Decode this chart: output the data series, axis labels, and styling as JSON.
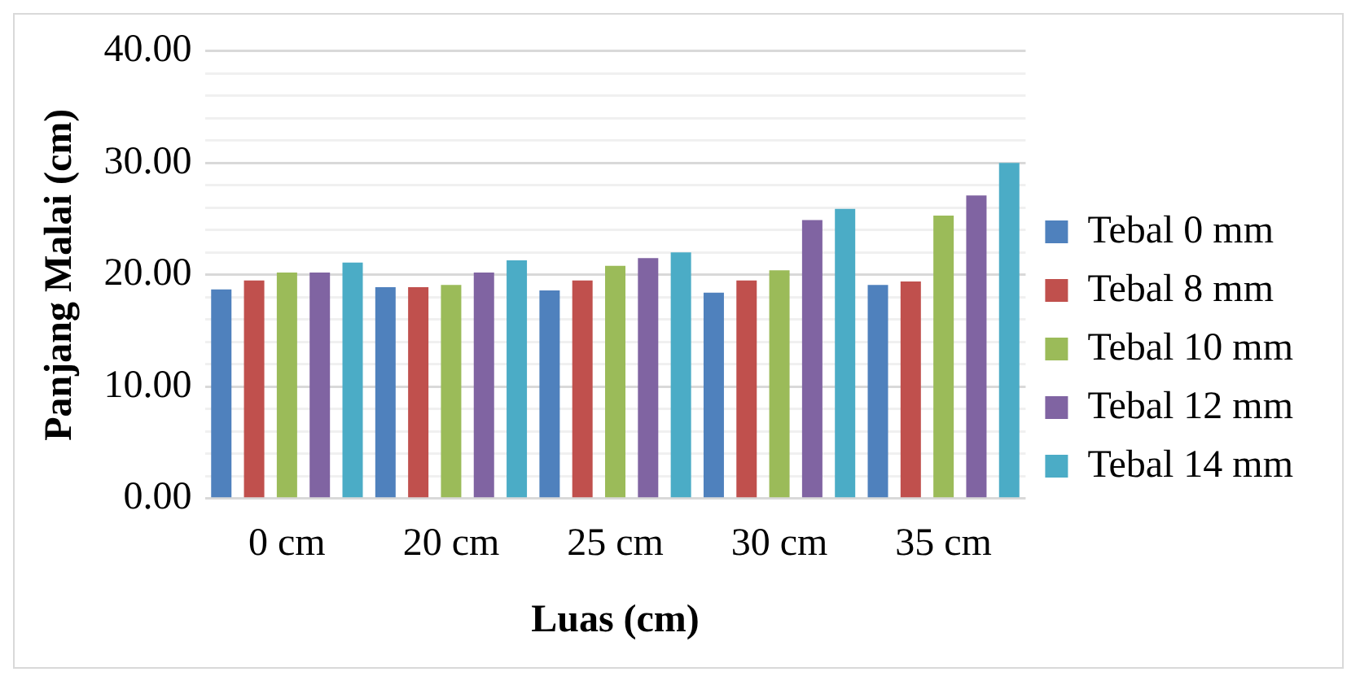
{
  "chart_data": {
    "type": "bar",
    "xlabel": "Luas (cm)",
    "ylabel": "Panjang Malai (cm)",
    "categories": [
      "0 cm",
      "20 cm",
      "25 cm",
      "30 cm",
      "35 cm"
    ],
    "series": [
      {
        "name": "Tebal 0 mm",
        "color": "#4f81bd",
        "values": [
          18.7,
          18.9,
          18.6,
          18.4,
          19.1
        ]
      },
      {
        "name": "Tebal 8 mm",
        "color": "#c0504d",
        "values": [
          19.5,
          18.9,
          19.5,
          19.5,
          19.4
        ]
      },
      {
        "name": "Tebal 10 mm",
        "color": "#9bbb59",
        "values": [
          20.2,
          19.1,
          20.8,
          20.4,
          25.3
        ]
      },
      {
        "name": "Tebal 12 mm",
        "color": "#8064a2",
        "values": [
          20.2,
          20.2,
          21.5,
          24.9,
          27.1
        ]
      },
      {
        "name": "Tebal 14 mm",
        "color": "#4bacc6",
        "values": [
          21.1,
          21.3,
          22.0,
          25.9,
          30.0
        ]
      }
    ],
    "ylim": [
      0,
      40
    ],
    "yticks": [
      {
        "value": 0,
        "label": "0.00"
      },
      {
        "value": 2,
        "label": null
      },
      {
        "value": 4,
        "label": null
      },
      {
        "value": 6,
        "label": null
      },
      {
        "value": 8,
        "label": null
      },
      {
        "value": 10,
        "label": "10.00"
      },
      {
        "value": 12,
        "label": null
      },
      {
        "value": 14,
        "label": null
      },
      {
        "value": 16,
        "label": null
      },
      {
        "value": 18,
        "label": null
      },
      {
        "value": 20,
        "label": "20.00"
      },
      {
        "value": 22,
        "label": null
      },
      {
        "value": 24,
        "label": null
      },
      {
        "value": 26,
        "label": null
      },
      {
        "value": 28,
        "label": null
      },
      {
        "value": 30,
        "label": "30.00"
      },
      {
        "value": 32,
        "label": null
      },
      {
        "value": 34,
        "label": null
      },
      {
        "value": 36,
        "label": null
      },
      {
        "value": 38,
        "label": null
      },
      {
        "value": 40,
        "label": "40.00"
      }
    ],
    "grid": "y",
    "legend": "right"
  }
}
